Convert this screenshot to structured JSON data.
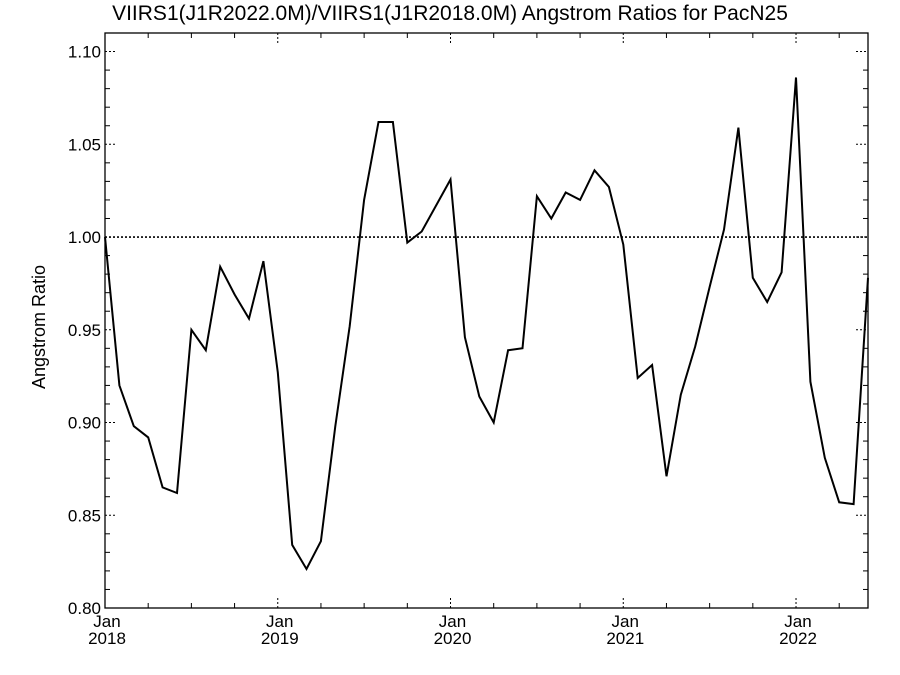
{
  "chart_data": {
    "type": "line",
    "title": "VIIRS1(J1R2022.0M)/VIIRS1(J1R2018.0M)  Angstrom Ratios for PacN25",
    "xlabel": "",
    "ylabel": "Angstrom Ratio",
    "ylim": [
      0.8,
      1.11
    ],
    "xlim": [
      "2018-01",
      "2022-06"
    ],
    "y_ticks": [
      "0.80",
      "0.85",
      "0.90",
      "0.95",
      "1.00",
      "1.05",
      "1.10"
    ],
    "x_ticks": [
      {
        "month": "Jan",
        "year": "2018"
      },
      {
        "month": "Jan",
        "year": "2019"
      },
      {
        "month": "Jan",
        "year": "2020"
      },
      {
        "month": "Jan",
        "year": "2021"
      },
      {
        "month": "Jan",
        "year": "2022"
      }
    ],
    "reference_line": 1.0,
    "grid": false,
    "series": [
      {
        "x": [
          "2018-01",
          "2018-02",
          "2018-03",
          "2018-04",
          "2018-05",
          "2018-06",
          "2018-07",
          "2018-08",
          "2018-09",
          "2018-10",
          "2018-11",
          "2018-12",
          "2019-01",
          "2019-02",
          "2019-03",
          "2019-04",
          "2019-05",
          "2019-06",
          "2019-07",
          "2019-08",
          "2019-09",
          "2019-10",
          "2019-11",
          "2019-12",
          "2020-01",
          "2020-02",
          "2020-03",
          "2020-04",
          "2020-05",
          "2020-06",
          "2020-07",
          "2020-08",
          "2020-09",
          "2020-10",
          "2020-11",
          "2020-12",
          "2021-01",
          "2021-02",
          "2021-03",
          "2021-04",
          "2021-05",
          "2021-06",
          "2021-07",
          "2021-08",
          "2021-09",
          "2021-10",
          "2021-11",
          "2021-12",
          "2022-01",
          "2022-02",
          "2022-03",
          "2022-04",
          "2022-05",
          "2022-06"
        ],
        "values": [
          1.0,
          0.92,
          0.898,
          0.892,
          0.865,
          0.862,
          0.95,
          0.939,
          0.984,
          0.969,
          0.956,
          0.987,
          0.927,
          0.834,
          0.821,
          0.836,
          0.898,
          0.952,
          1.02,
          1.062,
          1.062,
          0.997,
          1.003,
          1.017,
          1.031,
          0.946,
          0.914,
          0.9,
          0.939,
          0.94,
          1.022,
          1.01,
          1.024,
          1.02,
          1.036,
          1.027,
          0.996,
          0.924,
          0.931,
          0.871,
          0.915,
          0.941,
          0.973,
          1.004,
          1.059,
          0.978,
          0.965,
          0.981,
          1.086,
          0.922,
          0.881,
          0.857,
          0.856,
          0.978
        ]
      }
    ]
  }
}
